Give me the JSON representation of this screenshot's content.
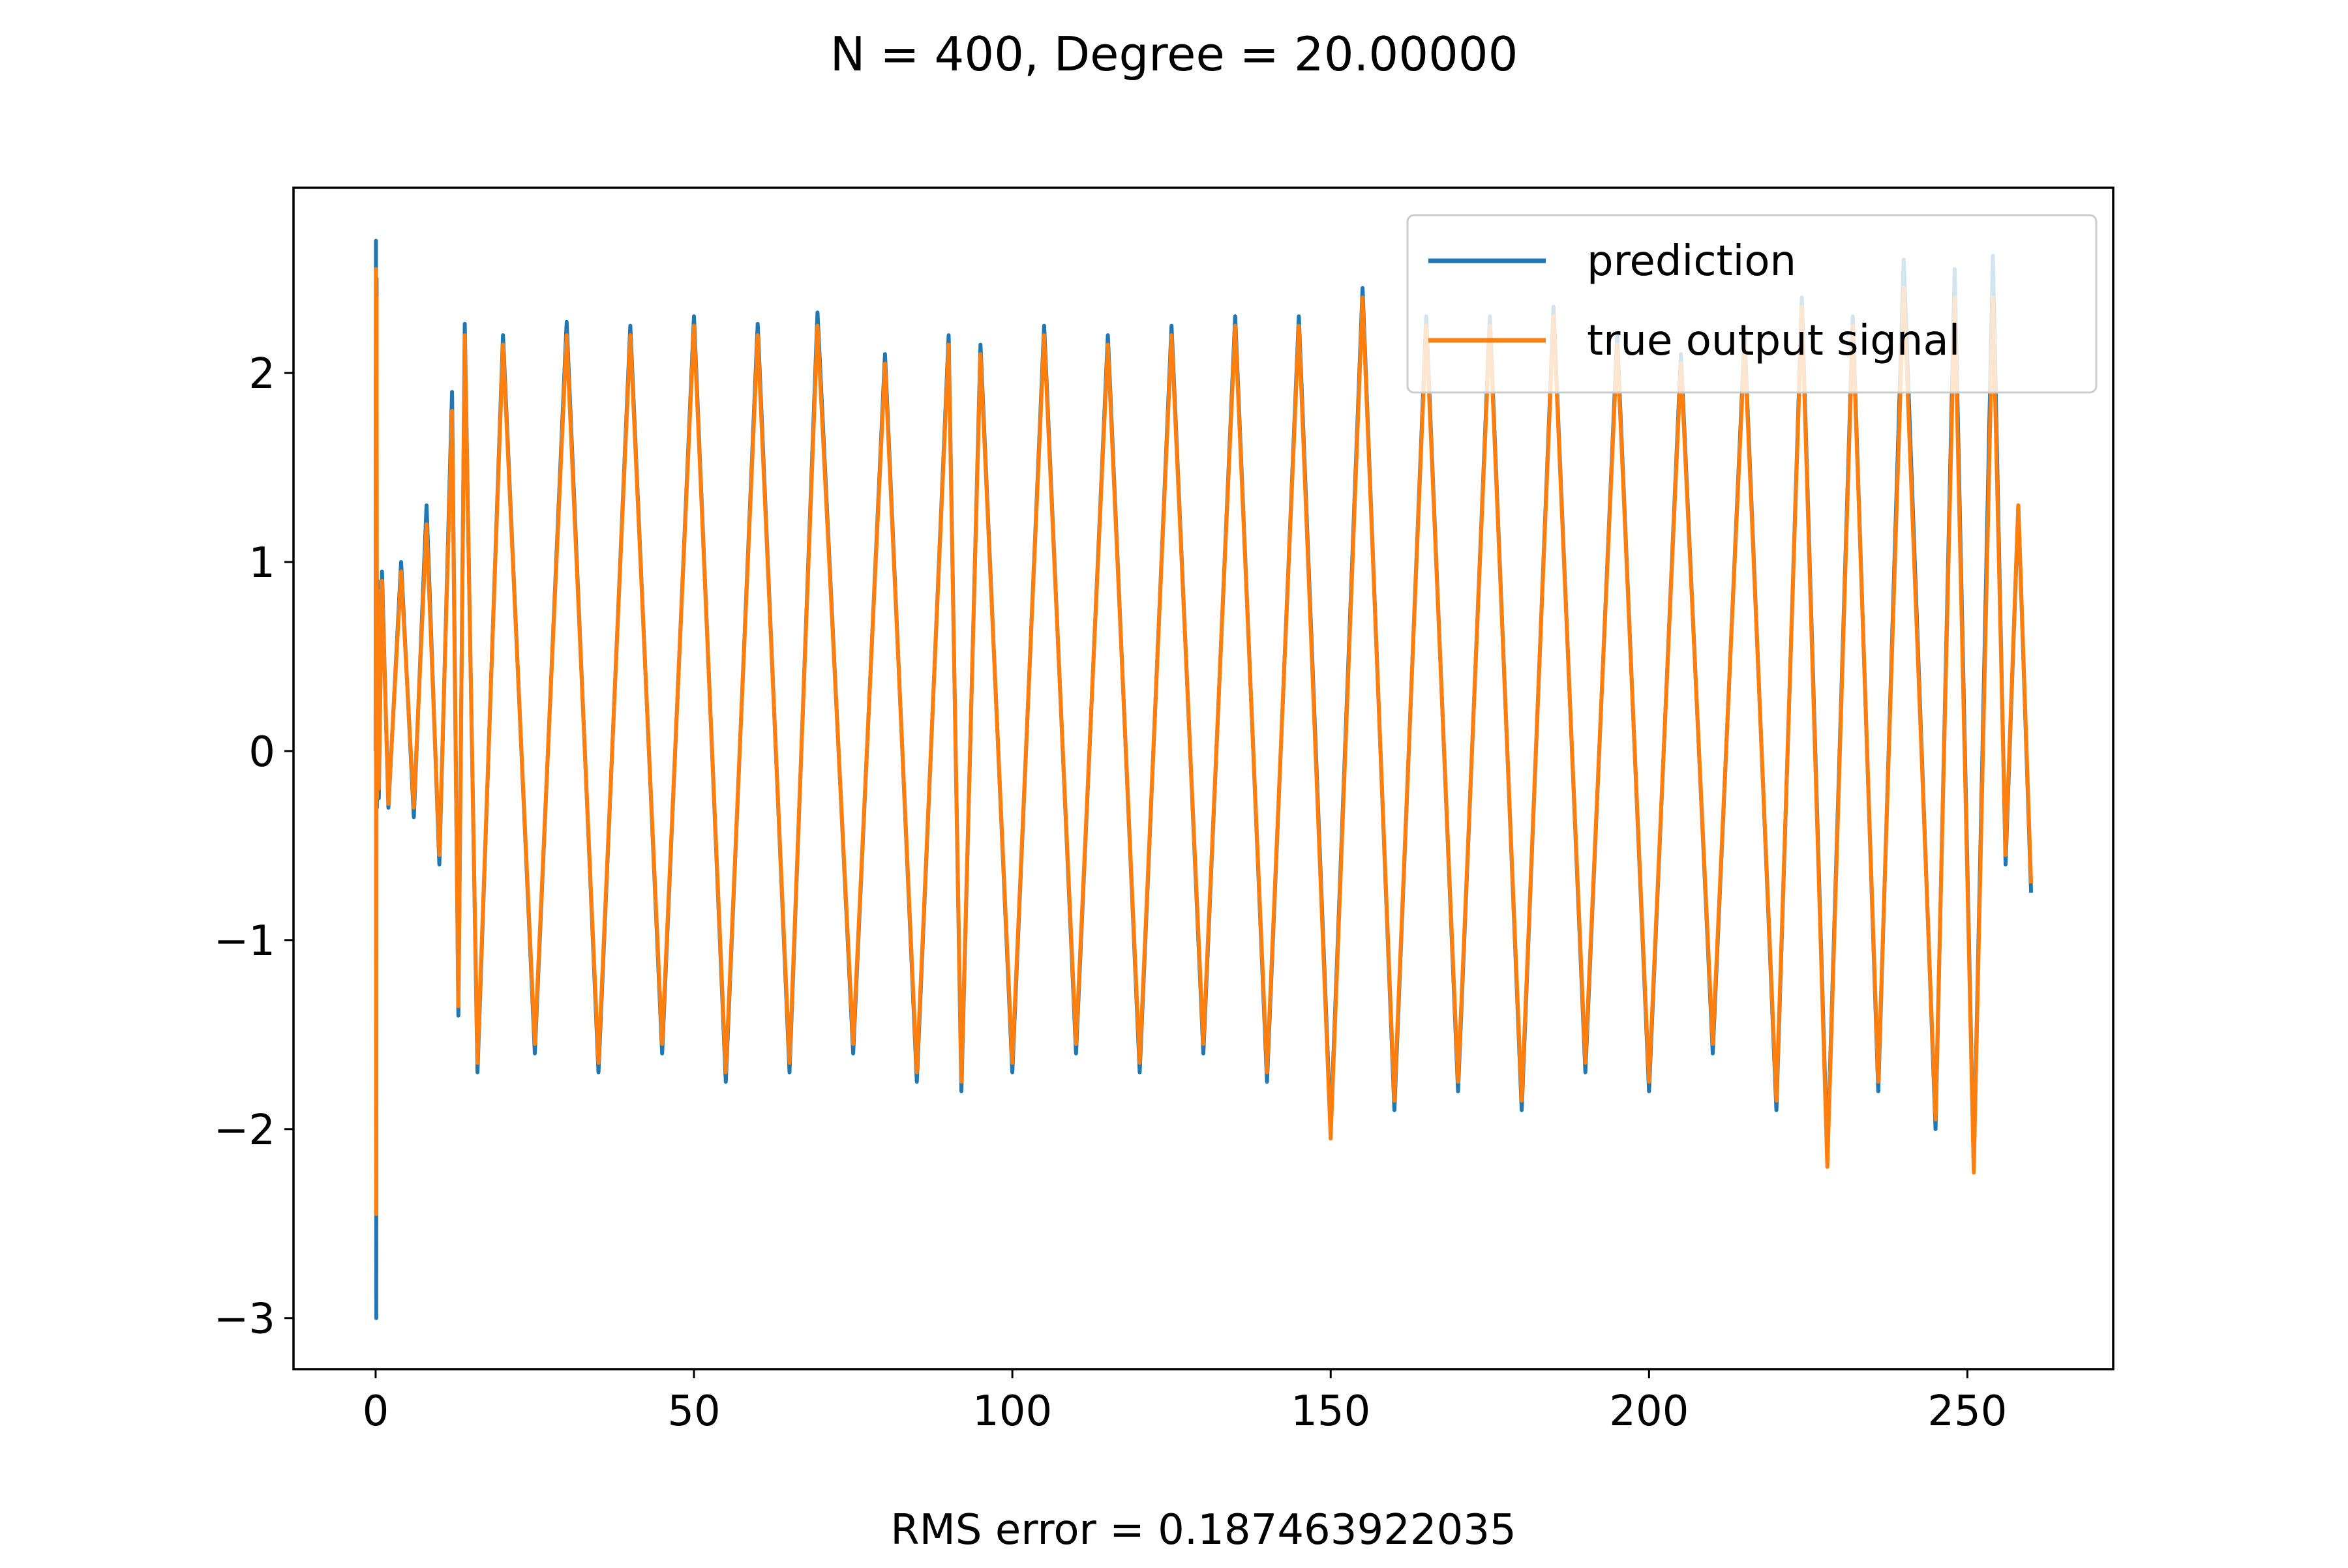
{
  "chart_data": {
    "type": "line",
    "title": "N = 400, Degree = 20.00000",
    "xlabel": "RMS error = 0.187463922035",
    "ylabel": "",
    "xlim": [
      -12.9,
      272.9
    ],
    "ylim": [
      -3.27,
      2.98
    ],
    "x_ticks": [
      {
        "value": 0,
        "label": "0"
      },
      {
        "value": 50,
        "label": "50"
      },
      {
        "value": 100,
        "label": "100"
      },
      {
        "value": 150,
        "label": "150"
      },
      {
        "value": 200,
        "label": "200"
      },
      {
        "value": 250,
        "label": "250"
      }
    ],
    "y_ticks": [
      {
        "value": -3,
        "label": "−3"
      },
      {
        "value": -2,
        "label": "−2"
      },
      {
        "value": -1,
        "label": "−1"
      },
      {
        "value": 0,
        "label": "0"
      },
      {
        "value": 1,
        "label": "1"
      },
      {
        "value": 2,
        "label": "2"
      }
    ],
    "grid": false,
    "legend_position": "top-right",
    "series": [
      {
        "name": "prediction",
        "color": "#1f77b4",
        "x": [
          0,
          0.05,
          0.1,
          0.15,
          0.2,
          0.3,
          0.5,
          1,
          2,
          4,
          6,
          8,
          10,
          12,
          13,
          14,
          16,
          20,
          25,
          30,
          35,
          40,
          45,
          50,
          55,
          60,
          65,
          69.4,
          75,
          80,
          85,
          90,
          92,
          95,
          100,
          105,
          110,
          115,
          120,
          125,
          130,
          135,
          140,
          145,
          150,
          155,
          160,
          165,
          170,
          175,
          180,
          185,
          190,
          195,
          200,
          205,
          210,
          215,
          220,
          224,
          228,
          232,
          236,
          240,
          245,
          248,
          251,
          254,
          256,
          258,
          260
        ],
        "y": [
          0.0,
          2.7,
          -3.0,
          2.5,
          -0.3,
          0.9,
          -0.25,
          0.95,
          -0.3,
          1.0,
          -0.35,
          1.3,
          -0.6,
          1.9,
          -1.4,
          2.26,
          -1.7,
          2.2,
          -1.6,
          2.27,
          -1.7,
          2.25,
          -1.6,
          2.3,
          -1.75,
          2.26,
          -1.7,
          2.32,
          -1.6,
          2.1,
          -1.75,
          2.2,
          -1.8,
          2.15,
          -1.7,
          2.25,
          -1.6,
          2.2,
          -1.7,
          2.25,
          -1.6,
          2.3,
          -1.75,
          2.3,
          -2.0,
          2.45,
          -1.9,
          2.3,
          -1.8,
          2.3,
          -1.9,
          2.35,
          -1.7,
          2.2,
          -1.8,
          2.1,
          -1.6,
          2.2,
          -1.9,
          2.4,
          -2.15,
          2.3,
          -1.8,
          2.6,
          -2.0,
          2.55,
          -2.2,
          2.62,
          -0.6,
          1.3,
          -0.75
        ]
      },
      {
        "name": "true output signal",
        "color": "#ff7f0e",
        "x": [
          0,
          0.05,
          0.1,
          0.15,
          0.2,
          0.3,
          0.5,
          1,
          2,
          4,
          6,
          8,
          10,
          12,
          13,
          14,
          16,
          20,
          25,
          30,
          35,
          40,
          45,
          50,
          55,
          60,
          65,
          69.4,
          75,
          80,
          85,
          90,
          92,
          95,
          100,
          105,
          110,
          115,
          120,
          125,
          130,
          135,
          140,
          145,
          150,
          155,
          160,
          165,
          170,
          175,
          180,
          185,
          190,
          195,
          200,
          205,
          210,
          215,
          220,
          224,
          228,
          232,
          236,
          240,
          245,
          248,
          251,
          254,
          256,
          258,
          260
        ],
        "y": [
          0.0,
          2.55,
          -2.45,
          2.4,
          -0.25,
          0.85,
          -0.2,
          0.9,
          -0.28,
          0.95,
          -0.3,
          1.2,
          -0.55,
          1.8,
          -1.35,
          2.2,
          -1.65,
          2.15,
          -1.55,
          2.2,
          -1.65,
          2.2,
          -1.55,
          2.25,
          -1.7,
          2.2,
          -1.65,
          2.25,
          -1.55,
          2.05,
          -1.7,
          2.15,
          -1.75,
          2.1,
          -1.65,
          2.2,
          -1.55,
          2.15,
          -1.65,
          2.2,
          -1.55,
          2.25,
          -1.7,
          2.25,
          -2.05,
          2.4,
          -1.85,
          2.25,
          -1.75,
          2.25,
          -1.85,
          2.3,
          -1.65,
          2.15,
          -1.75,
          2.05,
          -1.55,
          2.15,
          -1.85,
          2.35,
          -2.2,
          2.25,
          -1.75,
          2.45,
          -1.95,
          2.4,
          -2.23,
          2.4,
          -0.55,
          1.3,
          -0.7
        ]
      }
    ]
  }
}
